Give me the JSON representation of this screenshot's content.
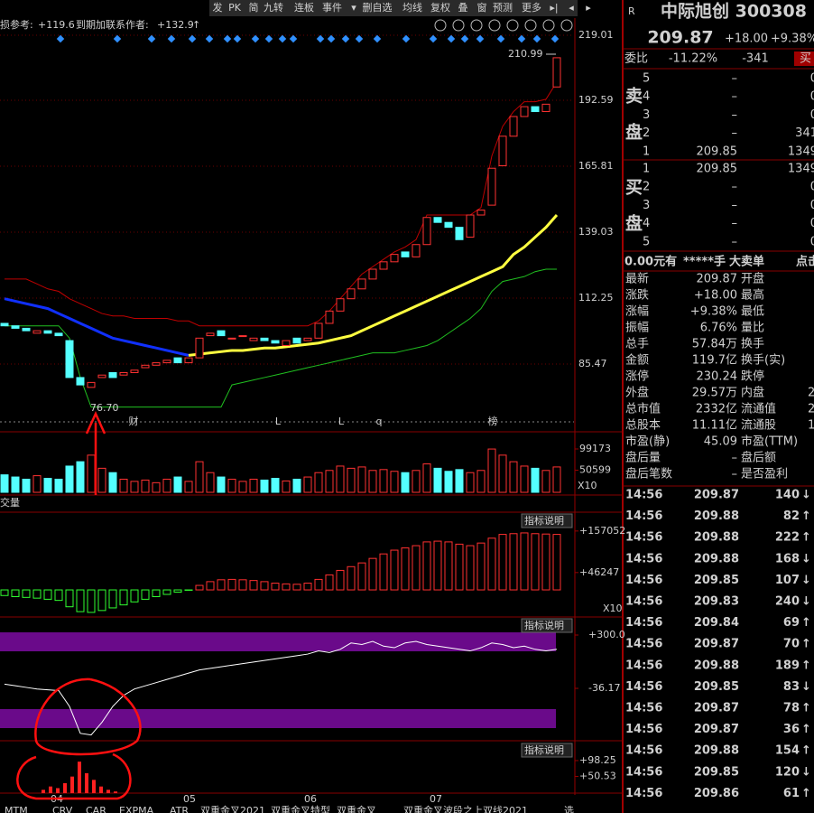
{
  "toolbar": [
    "发",
    "PK",
    "简",
    "九转",
    "连板",
    "事件",
    "▾",
    "删自选",
    "均线",
    "复权",
    "叠",
    "窗",
    "预测",
    "更多",
    "▸|",
    "◂",
    "▸"
  ],
  "header": {
    "ref_label": "损参考:",
    "ref_value": "+119.6",
    "target_label": "到期加联系作者:",
    "target_value": "+132.9",
    "target_arrow": "↑"
  },
  "price_chart": {
    "ylim": [
      60.9,
      222.31
    ],
    "yticks": [
      219.01,
      192.59,
      165.81,
      139.03,
      112.25,
      85.47
    ],
    "high_label": "210.99",
    "low_label": "76.70",
    "events": [
      "财",
      "L",
      "L",
      "q",
      "榜"
    ],
    "dates": [
      "04",
      "05",
      "06",
      "07"
    ],
    "open": [
      102,
      101,
      100,
      98,
      99,
      98,
      95,
      80,
      76,
      80,
      82,
      81,
      82,
      84,
      85,
      86,
      88,
      86,
      88,
      97,
      99,
      96,
      97,
      95,
      96,
      95,
      93,
      96,
      95,
      96,
      102,
      107,
      112,
      116,
      120,
      124,
      127,
      131,
      129,
      134,
      145,
      143,
      141,
      137,
      146,
      150,
      166,
      178,
      186,
      190,
      188,
      198
    ],
    "close": [
      101,
      100,
      99,
      99,
      98,
      97,
      80,
      77,
      78,
      81,
      80,
      82,
      83,
      85,
      86,
      87,
      86,
      88,
      96,
      98,
      97,
      96,
      97,
      96,
      95,
      94,
      95,
      94,
      96,
      102,
      107,
      112,
      116,
      120,
      124,
      127,
      130,
      129,
      134,
      145,
      143,
      141,
      136,
      146,
      148,
      165,
      178,
      186,
      190,
      188,
      191,
      209.87
    ],
    "ma_blue": [
      112,
      111,
      110,
      109,
      108,
      106,
      104,
      102,
      100,
      98,
      96,
      95,
      94,
      93,
      92,
      91,
      90,
      89,
      null,
      null,
      null,
      null,
      null,
      null,
      null,
      null,
      null,
      null,
      null,
      null,
      null,
      null,
      null,
      null,
      null,
      null,
      null,
      null,
      null,
      null,
      null,
      null,
      null,
      null,
      null,
      null,
      null,
      null,
      null,
      null,
      null,
      null
    ],
    "ma_yellow": [
      null,
      null,
      null,
      null,
      null,
      null,
      null,
      null,
      null,
      null,
      null,
      null,
      null,
      null,
      null,
      null,
      null,
      89,
      89.5,
      90,
      90.5,
      91,
      91,
      91.5,
      92,
      92,
      92.5,
      93,
      93.5,
      94,
      95,
      96,
      97,
      99,
      101,
      103,
      105,
      107,
      109,
      111,
      113,
      115,
      117,
      119,
      121,
      123,
      125,
      130,
      133,
      137,
      141,
      146
    ],
    "band_upper": [
      120,
      120,
      120,
      118,
      116,
      115,
      112,
      110,
      108,
      106,
      105,
      105,
      104,
      104,
      104,
      104,
      103,
      103,
      101,
      101,
      101,
      101,
      101,
      101,
      101,
      101,
      101,
      101,
      101,
      103,
      107,
      112,
      117,
      122,
      125,
      128,
      131,
      133,
      136,
      146,
      146,
      146,
      146,
      146,
      149,
      170,
      182,
      188,
      192,
      192,
      193,
      200
    ],
    "band_lower": [
      101,
      101,
      101,
      101,
      101,
      101,
      96,
      80,
      68,
      68,
      68,
      68,
      68,
      68,
      68,
      68,
      68,
      68,
      68,
      68,
      68,
      77,
      78,
      79,
      80,
      81,
      82,
      83,
      84,
      85,
      86,
      87,
      88,
      89,
      90,
      90,
      90,
      91,
      92,
      93,
      95,
      98,
      101,
      104,
      108,
      115,
      119,
      120,
      121,
      123,
      124,
      124
    ]
  },
  "volume": {
    "ylim": [
      0,
      113600
    ],
    "yticks": [
      99173,
      50599
    ],
    "unit": "X10",
    "values": [
      40000,
      35000,
      30000,
      38000,
      32000,
      30000,
      60000,
      70000,
      85000,
      55000,
      45000,
      30000,
      25000,
      28000,
      22000,
      30000,
      35000,
      25000,
      70000,
      45000,
      35000,
      30000,
      25000,
      30000,
      28000,
      32000,
      26000,
      30000,
      35000,
      45000,
      50000,
      60000,
      55000,
      58000,
      50000,
      52000,
      48000,
      45000,
      50000,
      65000,
      55000,
      48000,
      52000,
      45000,
      50000,
      99000,
      85000,
      70000,
      60000,
      55000,
      50000,
      58000
    ]
  },
  "macd": {
    "name": "交量",
    "note": "指标说明",
    "unit": "X10",
    "ylim": [
      -65000,
      188000
    ],
    "yticks": [
      {
        "value": 157052,
        "label": "+157052"
      },
      {
        "value": 46247,
        "label": "+46247"
      }
    ],
    "values": [
      -15000,
      -18000,
      -20000,
      -22000,
      -25000,
      -28000,
      -45000,
      -58000,
      -60000,
      -55000,
      -48000,
      -40000,
      -32000,
      -25000,
      -18000,
      -12000,
      -6000,
      -1000,
      12000,
      22000,
      27000,
      28000,
      27000,
      25000,
      22000,
      18000,
      16000,
      15000,
      18000,
      28000,
      40000,
      52000,
      62000,
      72000,
      84000,
      96000,
      106000,
      112000,
      118000,
      128000,
      130000,
      128000,
      122000,
      118000,
      125000,
      138000,
      148000,
      150000,
      152000,
      150000,
      149000,
      148000
    ]
  },
  "osc": {
    "note": "指标说明",
    "ylim": [
      -355,
      374
    ],
    "yticks": [
      {
        "value": 300,
        "label": "+300.0"
      },
      -36.17
    ],
    "values": [
      -10,
      -20,
      -30,
      -40,
      -45,
      -50,
      -150,
      -320,
      -330,
      -250,
      -150,
      -80,
      -40,
      -20,
      0,
      20,
      40,
      60,
      80,
      90,
      100,
      110,
      120,
      130,
      140,
      150,
      160,
      170,
      180,
      200,
      190,
      210,
      250,
      240,
      260,
      230,
      220,
      250,
      260,
      240,
      230,
      220,
      210,
      200,
      220,
      250,
      240,
      220,
      230,
      210,
      200,
      210
    ]
  },
  "lower": {
    "note": "指标说明",
    "ylim": [
      0,
      120
    ],
    "yticks": [
      {
        "value": 98.25,
        "label": "+98.25"
      },
      {
        "value": 50.53,
        "label": "+50.53"
      }
    ],
    "values": [
      10,
      20,
      15,
      30,
      50,
      95,
      60,
      40,
      20,
      10,
      5
    ]
  },
  "tabs": [
    "MTM",
    "CRV",
    "CAR",
    "EXPMA",
    "ATR",
    "双重金叉2021",
    "双重金叉特型",
    "双重金叉",
    "双重金叉波段之上",
    "双线2021",
    "选"
  ],
  "quote": {
    "r": "R",
    "name": "中际旭创 300308",
    "price": "209.87",
    "change": "+18.00",
    "pct": "+9.38%"
  },
  "order_ratio": {
    "label": "委比",
    "ratio": "-11.22%",
    "diff": "-341",
    "button": "买"
  },
  "sell_side": [
    "卖",
    "盘"
  ],
  "buy_side": [
    "买",
    "盘"
  ],
  "sell": [
    {
      "level": "5",
      "price": "–",
      "vol": "0"
    },
    {
      "level": "4",
      "price": "–",
      "vol": "0"
    },
    {
      "level": "3",
      "price": "–",
      "vol": "0"
    },
    {
      "level": "2",
      "price": "–",
      "vol": "341"
    },
    {
      "level": "1",
      "price": "209.85",
      "vol": "1349"
    }
  ],
  "buy": [
    {
      "level": "1",
      "price": "209.85",
      "vol": "1349"
    },
    {
      "level": "2",
      "price": "–",
      "vol": "0"
    },
    {
      "level": "3",
      "price": "–",
      "vol": "0"
    },
    {
      "level": "4",
      "price": "–",
      "vol": "0"
    },
    {
      "level": "5",
      "price": "–",
      "vol": "0"
    }
  ],
  "big_order": [
    "0.00元有",
    "*****手",
    "大卖单",
    "点击"
  ],
  "stats": [
    {
      "label": "最新",
      "value": "209.87",
      "color": "#ff3c3c",
      "label2": "开盘"
    },
    {
      "label": "涨跌",
      "value": "+18.00",
      "color": "#ff3c3c",
      "label2": "最高"
    },
    {
      "label": "涨幅",
      "value": "+9.38%",
      "color": "#ff3c3c",
      "label2": "最低"
    },
    {
      "label": "振幅",
      "value": "6.76%",
      "color": "#ff3c3c",
      "label2": "量比"
    },
    {
      "label": "总手",
      "value": "57.84万",
      "color": "#ffff00",
      "label2": "换手"
    },
    {
      "label": "金额",
      "value": "119.7亿",
      "color": "#ffff00",
      "label2": "换手(实)"
    },
    {
      "label": "涨停",
      "value": "230.24",
      "color": "#ff3c3c",
      "label2": "跌停"
    },
    {
      "label": "外盘",
      "value": "29.57万",
      "color": "#ff3c3c",
      "label2": "内盘",
      "value2": "2"
    },
    {
      "label": "总市值",
      "value": "2332亿",
      "color": "#ffff00",
      "label2": "流通值",
      "value2": "2"
    },
    {
      "label": "总股本",
      "value": "11.11亿",
      "color": "#ffff00",
      "label2": "流通股",
      "value2": "1"
    },
    {
      "label": "市盈(静)",
      "value": "45.09",
      "color": "#e0e0e0",
      "label2": "市盈(TTM)"
    },
    {
      "label": "盘后量",
      "value": "–",
      "color": "#e0e0e0",
      "label2": "盘后额"
    },
    {
      "label": "盘后笔数",
      "value": "–",
      "color": "#e0e0e0",
      "label2": "是否盈利"
    }
  ],
  "trades": [
    {
      "time": "14:56",
      "price": "209.87",
      "vol": "140",
      "arrow": "↓",
      "color": "#00e000"
    },
    {
      "time": "14:56",
      "price": "209.88",
      "vol": "82",
      "arrow": "↑",
      "color": "#ff3c3c"
    },
    {
      "time": "14:56",
      "price": "209.88",
      "vol": "222",
      "arrow": "↑",
      "color": "#ff3c3c"
    },
    {
      "time": "14:56",
      "price": "209.88",
      "vol": "168",
      "arrow": "↓",
      "color": "#00e000"
    },
    {
      "time": "14:56",
      "price": "209.85",
      "vol": "107",
      "arrow": "↓",
      "color": "#00e000"
    },
    {
      "time": "14:56",
      "price": "209.83",
      "vol": "240",
      "arrow": "↓",
      "color": "#00e000"
    },
    {
      "time": "14:56",
      "price": "209.84",
      "vol": "69",
      "arrow": "↑",
      "color": "#ff3c3c"
    },
    {
      "time": "14:56",
      "price": "209.87",
      "vol": "70",
      "arrow": "↑",
      "color": "#ff3c3c"
    },
    {
      "time": "14:56",
      "price": "209.88",
      "vol": "189",
      "arrow": "↑",
      "color": "#ff3c3c"
    },
    {
      "time": "14:56",
      "price": "209.85",
      "vol": "83",
      "arrow": "↓",
      "color": "#00e000"
    },
    {
      "time": "14:56",
      "price": "209.87",
      "vol": "78",
      "arrow": "↑",
      "color": "#ff3c3c"
    },
    {
      "time": "14:56",
      "price": "209.87",
      "vol": "36",
      "arrow": "↑",
      "color": "#ff3c3c"
    },
    {
      "time": "14:56",
      "price": "209.88",
      "vol": "154",
      "arrow": "↑",
      "color": "#ff3c3c"
    },
    {
      "time": "14:56",
      "price": "209.85",
      "vol": "120",
      "arrow": "↓",
      "color": "#00e000"
    },
    {
      "time": "14:56",
      "price": "209.86",
      "vol": "61",
      "arrow": "↑",
      "color": "#ff3c3c"
    }
  ]
}
